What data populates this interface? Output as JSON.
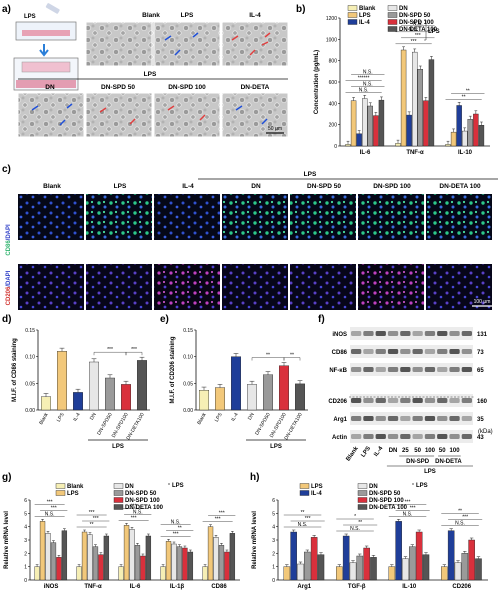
{
  "colors": {
    "blank": "#f6efb5",
    "lps": "#f2c87a",
    "il4": "#1f3e99",
    "dn": "#e7e7e7",
    "spd50": "#9a9a9a",
    "spd100": "#d9303c",
    "deta": "#555555",
    "blue_arrow": "#2050d8",
    "red_arrow": "#e04040"
  },
  "panels": {
    "a": {
      "letter": "a)",
      "lps_tag": "LPS",
      "top_labels": [
        "Blank",
        "LPS",
        "IL-4"
      ],
      "group_label": "LPS",
      "bottom_labels": [
        "DN",
        "DN-SPD 50",
        "DN-SPD 100",
        "DN-DETA"
      ],
      "scale": "50 μm"
    },
    "c": {
      "letter": "c)",
      "labels": [
        "Blank",
        "LPS",
        "IL-4",
        "DN",
        "DN-SPD 50",
        "DN-SPD 100",
        "DN-DETA 100"
      ],
      "group_label": "LPS",
      "row1_stain": [
        "CD86",
        "/DAPI"
      ],
      "row2_stain": [
        "CD206",
        "/DAPI"
      ],
      "scale": "100 μm"
    },
    "f": {
      "letter": "f)",
      "bands": [
        {
          "name": "iNOS",
          "kda": "131"
        },
        {
          "name": "CD86",
          "kda": "73"
        },
        {
          "name": "NF-κB",
          "kda": "65"
        },
        {
          "name": "CD206",
          "kda": "160"
        },
        {
          "name": "Arg1",
          "kda": "35"
        },
        {
          "name": "Actin",
          "kda": "43"
        }
      ],
      "kda_unit": "(kDa)",
      "lanes": [
        "Blank",
        "LPS",
        "IL-4"
      ],
      "conc": [
        "25",
        "50",
        "100",
        "50",
        "100"
      ],
      "group_dn": "DN",
      "group_spd": "DN-SPD",
      "group_deta": "DN-DETA",
      "group_lps": "LPS"
    }
  },
  "chart_data": [
    {
      "id": "b",
      "letter": "b)",
      "type": "bar",
      "categories": [
        "IL-6",
        "TNF-α",
        "IL-10"
      ],
      "series": [
        {
          "name": "Blank",
          "values": [
            15,
            25,
            15
          ]
        },
        {
          "name": "LPS",
          "values": [
            425,
            900,
            130
          ]
        },
        {
          "name": "IL-4",
          "values": [
            115,
            290,
            380
          ]
        },
        {
          "name": "DN",
          "values": [
            445,
            880,
            140
          ]
        },
        {
          "name": "DN-SPD 50",
          "values": [
            375,
            720,
            250
          ]
        },
        {
          "name": "DN-SPD 100",
          "values": [
            285,
            425,
            300
          ]
        },
        {
          "name": "DN-DETA 100",
          "values": [
            430,
            810,
            195
          ]
        }
      ],
      "ylabel": "Concentration (pg/mL)",
      "ylim": [
        0,
        1200
      ],
      "yticks": [
        0,
        200,
        400,
        600,
        800,
        1000,
        1200
      ],
      "legend_group_label": "LPS",
      "sig": [
        "N.S.",
        "N.S.",
        "******",
        "N.S.",
        "***",
        "***",
        "N.S.",
        "N.S.",
        "**",
        "**"
      ]
    },
    {
      "id": "d",
      "letter": "d)",
      "type": "bar",
      "categories": [
        "Blank",
        "LPS",
        "IL-4",
        "DN",
        "DN-SPD50",
        "DN-SPD100",
        "DN-DETA100"
      ],
      "values": [
        0.025,
        0.11,
        0.033,
        0.09,
        0.06,
        0.048,
        0.093
      ],
      "ylabel": "M.I.F. of CD86 staining",
      "ylim": [
        0,
        0.15
      ],
      "yticks": [
        0.0,
        0.05,
        0.1,
        0.15
      ],
      "group_label": "LPS",
      "sig": [
        "***",
        "***"
      ]
    },
    {
      "id": "e",
      "letter": "e)",
      "type": "bar",
      "categories": [
        "Blank",
        "LPS",
        "IL-4",
        "DN",
        "DN-SPD50",
        "DN-SPD100",
        "DN-DETA100"
      ],
      "values": [
        0.037,
        0.042,
        0.1,
        0.048,
        0.066,
        0.083,
        0.049
      ],
      "ylabel": "M.I.F. of CD206 staining",
      "ylim": [
        0,
        0.15
      ],
      "yticks": [
        0.0,
        0.05,
        0.1,
        0.15
      ],
      "group_label": "LPS",
      "sig": [
        "**",
        "**"
      ]
    },
    {
      "id": "g",
      "letter": "g)",
      "type": "bar",
      "categories": [
        "iNOS",
        "TNF-α",
        "IL-6",
        "IL-1β",
        "CD86"
      ],
      "series": [
        {
          "name": "Blank",
          "values": [
            1.0,
            1.0,
            1.0,
            1.0,
            1.0
          ]
        },
        {
          "name": "LPS",
          "values": [
            4.4,
            3.6,
            4.1,
            2.9,
            4.0
          ]
        },
        {
          "name": "DN",
          "values": [
            3.5,
            3.4,
            3.8,
            2.7,
            3.2
          ]
        },
        {
          "name": "DN-SPD 50",
          "values": [
            2.8,
            2.5,
            2.6,
            2.5,
            2.6
          ]
        },
        {
          "name": "DN-SPD 100",
          "values": [
            1.7,
            1.9,
            1.8,
            2.4,
            2.1
          ]
        },
        {
          "name": "DN-DETA 100",
          "values": [
            3.7,
            3.3,
            3.3,
            2.1,
            3.5
          ]
        }
      ],
      "ylabel": "Relative mRNA level",
      "ylim": [
        0,
        6
      ],
      "yticks": [
        0,
        1,
        2,
        3,
        4,
        5,
        6
      ],
      "legend_group_label": "LPS",
      "sig": [
        "N.S.",
        "***",
        "***",
        "**",
        "***",
        "***",
        "***",
        "N.S.",
        "***",
        "***",
        "**",
        "N.S.",
        "***",
        "***"
      ]
    },
    {
      "id": "h",
      "letter": "h)",
      "type": "bar",
      "categories": [
        "Arg1",
        "TGF-β",
        "IL-10",
        "CD206"
      ],
      "series": [
        {
          "name": "LPS",
          "values": [
            1.0,
            1.0,
            1.0,
            1.0
          ]
        },
        {
          "name": "IL-4",
          "values": [
            3.6,
            3.3,
            4.4,
            3.7
          ]
        },
        {
          "name": "DN",
          "values": [
            1.2,
            1.3,
            1.6,
            1.3
          ]
        },
        {
          "name": "DN-SPD 50",
          "values": [
            2.1,
            1.8,
            2.5,
            2.0
          ]
        },
        {
          "name": "DN-SPD 100",
          "values": [
            3.2,
            2.4,
            3.6,
            3.0
          ]
        },
        {
          "name": "DN-DETA 100",
          "values": [
            1.9,
            1.7,
            1.9,
            1.6
          ]
        }
      ],
      "ylabel": "Relative mRNA level",
      "ylim": [
        0,
        6
      ],
      "yticks": [
        0,
        1,
        2,
        3,
        4,
        5,
        6
      ],
      "legend_group_label": "LPS",
      "sig": [
        "N.S.",
        "***",
        "**",
        "N.S.",
        "**",
        "*",
        "N.S.",
        "***",
        "***",
        "N.S.",
        "***",
        "**"
      ]
    }
  ]
}
